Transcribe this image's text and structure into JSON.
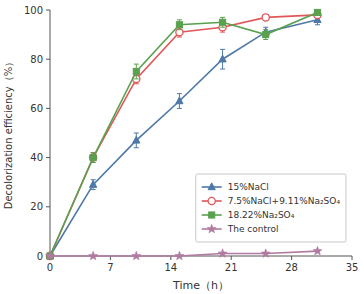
{
  "chart_data": {
    "type": "line",
    "xlabel": "Time（h）",
    "ylabel": "Decolorization efficiency（%）",
    "x": [
      0,
      5,
      10,
      15,
      20,
      25,
      31
    ],
    "series": [
      {
        "name": "15%NaCl",
        "marker": "triangle",
        "line_style": "solid",
        "values": [
          0,
          29,
          47,
          63,
          80,
          91,
          96
        ],
        "errors": [
          0,
          2,
          3,
          3,
          4,
          2,
          2
        ]
      },
      {
        "name": "7.5%NaCl+9.11%Na₂SO₄",
        "marker": "open-circle",
        "line_style": "solid",
        "values": [
          0,
          40,
          72,
          91,
          93,
          97,
          98
        ],
        "errors": [
          0,
          2,
          2,
          2,
          2,
          1,
          1
        ]
      },
      {
        "name": "18.22%Na₂SO₄",
        "marker": "square",
        "line_style": "solid",
        "values": [
          0,
          40,
          75,
          94,
          95,
          90,
          99
        ],
        "errors": [
          0,
          2,
          3,
          2,
          2,
          2,
          1
        ]
      },
      {
        "name": "The control",
        "marker": "star",
        "line_style": "solid",
        "values": [
          0,
          0,
          0,
          0,
          1,
          1,
          2
        ],
        "errors": [
          0,
          0,
          0,
          0,
          0,
          0,
          0
        ]
      }
    ],
    "xlim": [
      0,
      35
    ],
    "ylim": [
      0,
      100
    ],
    "xticks": [
      0,
      7,
      14,
      21,
      28,
      35
    ],
    "yticks": [
      0,
      20,
      40,
      60,
      80,
      100
    ],
    "grid": false,
    "legend": "right"
  }
}
